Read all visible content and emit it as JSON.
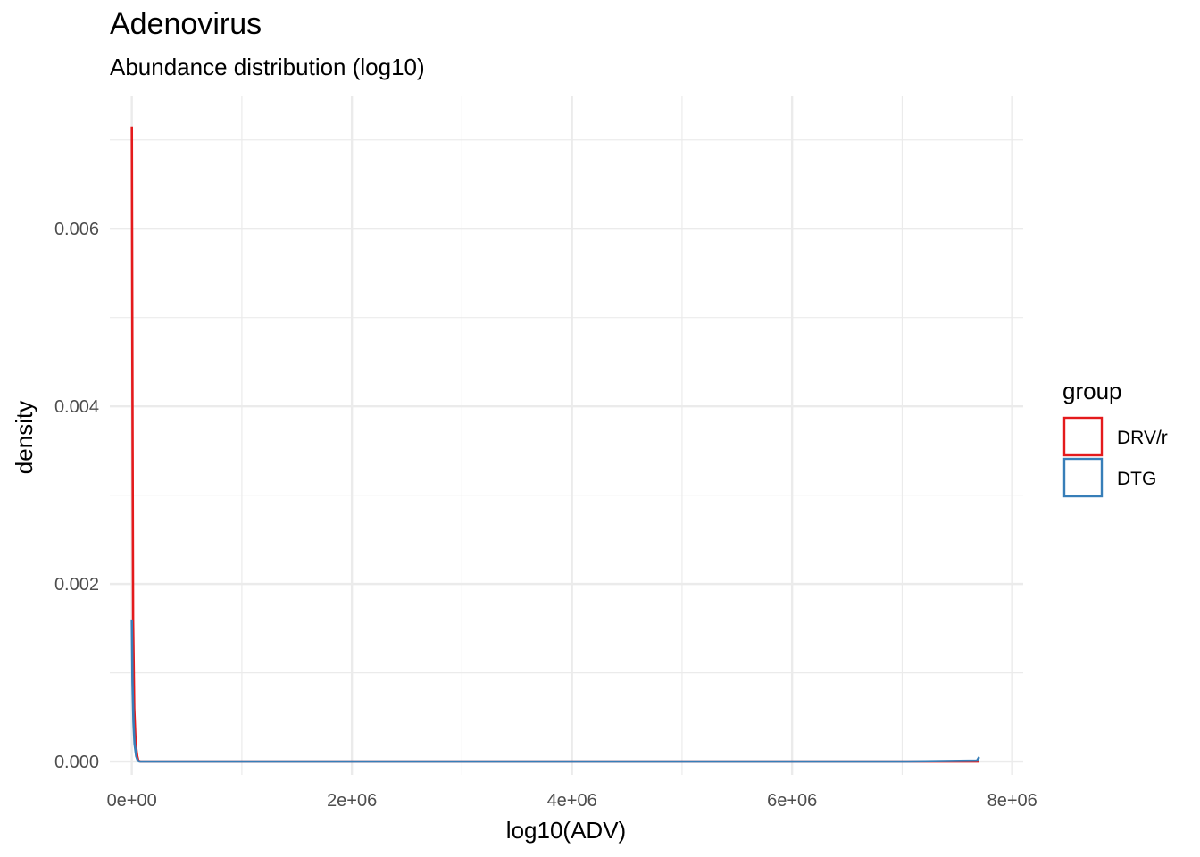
{
  "chart_data": {
    "type": "line",
    "title": "Adenovirus",
    "subtitle": "Abundance distribution (log10)",
    "xlabel": "log10(ADV)",
    "ylabel": "density",
    "xlim": [
      -200000,
      8100000
    ],
    "ylim": [
      -0.00015,
      0.0075
    ],
    "x_ticks": [
      0,
      2000000,
      4000000,
      6000000,
      8000000
    ],
    "x_tick_labels": [
      "0e+00",
      "2e+06",
      "4e+06",
      "6e+06",
      "8e+06"
    ],
    "y_ticks": [
      0,
      0.002,
      0.004,
      0.006
    ],
    "y_tick_labels": [
      "0.000",
      "0.002",
      "0.004",
      "0.006"
    ],
    "grid": true,
    "legend": {
      "title": "group",
      "placement": "right"
    },
    "series": [
      {
        "name": "DRV/r",
        "color": "#E41A1C",
        "x": [
          0,
          5000,
          12000,
          22000,
          35000,
          50000,
          60000,
          80000,
          150000,
          1000000,
          3000000,
          5000000,
          7000000,
          7700000
        ],
        "y": [
          0.00715,
          0.0045,
          0.0016,
          0.0006,
          0.0002,
          6e-05,
          1e-05,
          0,
          0,
          0,
          0,
          0,
          0,
          0
        ]
      },
      {
        "name": "DTG",
        "color": "#377EB8",
        "x": [
          0,
          6000,
          15000,
          25000,
          40000,
          55000,
          70000,
          150000,
          1000000,
          3000000,
          5000000,
          7000000,
          7680000,
          7700000
        ],
        "y": [
          0.0016,
          0.0009,
          0.00045,
          0.0002,
          6e-05,
          1e-05,
          0,
          0,
          0,
          0,
          0,
          0,
          1e-05,
          5e-05
        ]
      }
    ]
  }
}
